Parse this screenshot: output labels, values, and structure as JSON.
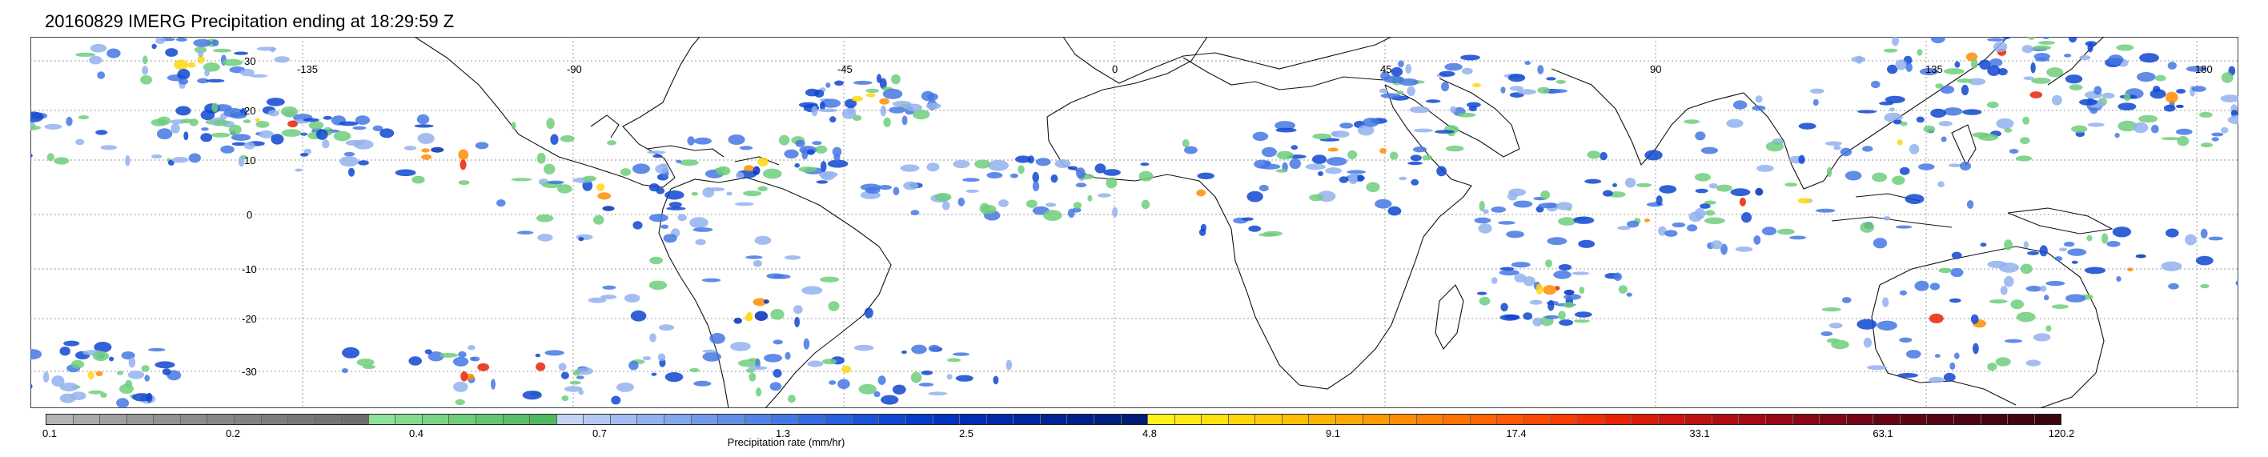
{
  "title": "20160829 IMERG Precipitation ending at 18:29:59 Z",
  "map": {
    "lat_labels": [
      "30",
      "20",
      "10",
      "0",
      "-10",
      "-20",
      "-30"
    ],
    "lon_labels": [
      "-135",
      "-90",
      "-45",
      "0",
      "45",
      "90",
      "135",
      "180"
    ],
    "grid_style": "dotted",
    "land_outline_color": "#000000"
  },
  "colorbar": {
    "title": "Precipitation rate (mm/hr)",
    "tick_labels": [
      "0.1",
      "0.2",
      "0.4",
      "0.7",
      "1.3",
      "2.5",
      "4.8",
      "9.1",
      "17.4",
      "33.1",
      "63.1",
      "120.2"
    ],
    "colors": [
      "#b4b4b4",
      "#aaaaaa",
      "#a0a0a0",
      "#999999",
      "#929292",
      "#8c8c8c",
      "#878787",
      "#828282",
      "#7d7d7d",
      "#787878",
      "#737373",
      "#6e6e6e",
      "#8ee09a",
      "#84db8f",
      "#79d485",
      "#6ece7b",
      "#64c671",
      "#5abf67",
      "#50b85d",
      "#c4d3f4",
      "#b4c8f2",
      "#a4bdf0",
      "#93b1ee",
      "#83a6ec",
      "#739aea",
      "#638ee8",
      "#5383e6",
      "#4477e3",
      "#366be0",
      "#285fdc",
      "#1b53d6",
      "#0f46cf",
      "#053bc8",
      "#0032c0",
      "#002db5",
      "#0029aa",
      "#00259f",
      "#002294",
      "#00208a",
      "#001e80",
      "#001c76",
      "#fff41a",
      "#ffea16",
      "#ffe012",
      "#ffd60e",
      "#ffcb0b",
      "#ffbf09",
      "#ffb307",
      "#ffa706",
      "#ff9a05",
      "#ff8d04",
      "#ff7f03",
      "#ff7203",
      "#ff6502",
      "#ff5702",
      "#fc4902",
      "#f73c02",
      "#f02f03",
      "#e82304",
      "#d81a0a",
      "#cc150d",
      "#bf1010",
      "#b20c12",
      "#a50914",
      "#980715",
      "#8b0616",
      "#7e0516",
      "#730516",
      "#680515",
      "#5e0514",
      "#550513",
      "#4d0512",
      "#460511",
      "#400510",
      "#3a050f"
    ],
    "series_legend": "precipitation"
  }
}
